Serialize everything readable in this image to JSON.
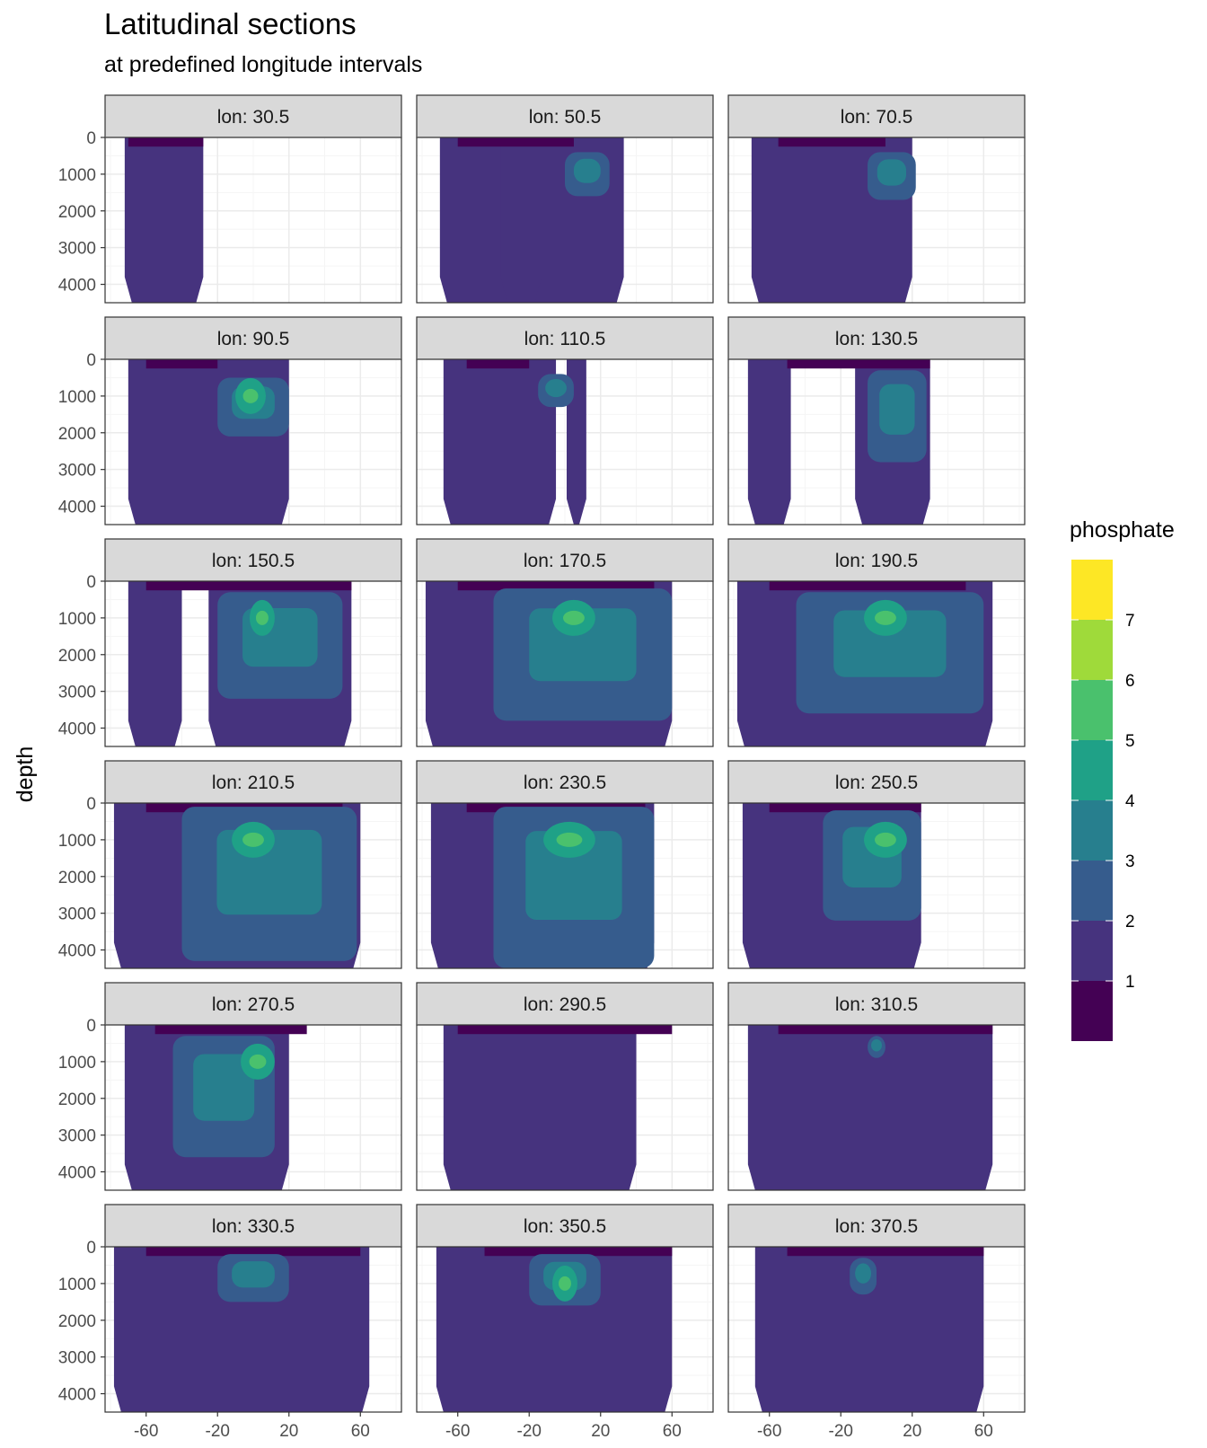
{
  "chart_data": {
    "type": "heatmap",
    "title": "Latitudinal sections",
    "subtitle": "at predefined longitude intervals",
    "xlabel": "",
    "ylabel": "depth",
    "xlim": [
      -83,
      83
    ],
    "ylim": [
      4500,
      0
    ],
    "x_ticks": [
      -60,
      -20,
      20,
      60
    ],
    "x_tick_labels": [
      "-60",
      "-20",
      "20",
      "60"
    ],
    "y_ticks": [
      0,
      1000,
      2000,
      3000,
      4000
    ],
    "y_tick_labels": [
      "0",
      "1000",
      "2000",
      "3000",
      "4000"
    ],
    "grid": true,
    "legend": {
      "title": "phosphate",
      "position": "right",
      "breaks": [
        "1",
        "2",
        "3",
        "4",
        "5",
        "6",
        "7"
      ],
      "colors": [
        "#440154",
        "#46337E",
        "#365C8D",
        "#277F8E",
        "#1FA187",
        "#4AC16D",
        "#9FDA3A",
        "#FDE725"
      ]
    },
    "colors": {
      "strip_fill": "#d9d9d9",
      "panel_border": "#333333",
      "grid_major": "#ebebeb",
      "grid_minor": "#f5f5f5"
    },
    "panels": [
      {
        "label": "lon: 30.5",
        "ocean": [
          [
            -67,
            -30,
            -72,
            -28
          ]
        ],
        "core": [],
        "hot": [],
        "top": [
          [
            -70,
            -28,
            -65,
            -30
          ]
        ]
      },
      {
        "label": "lon: 50.5",
        "ocean": [
          [
            -65,
            33,
            -70,
            20
          ],
          [
            -35,
            -13,
            -36,
            -20
          ]
        ],
        "core": [
          [
            0,
            25,
            400,
            1600
          ]
        ],
        "hot": [],
        "top": [
          [
            -50,
            5,
            -60,
            0
          ]
        ]
      },
      {
        "label": "lon: 70.5",
        "ocean": [
          [
            -70,
            20,
            -68,
            18
          ]
        ],
        "core": [
          [
            -5,
            22,
            400,
            1700
          ]
        ],
        "hot": [],
        "top": [
          [
            -55,
            0,
            -50,
            5
          ]
        ]
      },
      {
        "label": "lon: 90.5",
        "ocean": [
          [
            -65,
            20,
            -70,
            15
          ]
        ],
        "core": [
          [
            -20,
            20,
            500,
            2100
          ]
        ],
        "hot": [
          [
            -8,
            5
          ]
        ],
        "top": [
          [
            -50,
            -20,
            -60,
            -25
          ]
        ]
      },
      {
        "label": "lon: 110.5",
        "ocean": [
          [
            -65,
            -5,
            -68,
            -10
          ],
          [
            2,
            12,
            1,
            11
          ]
        ],
        "core": [
          [
            -15,
            5,
            400,
            1300
          ]
        ],
        "hot": [],
        "top": [
          [
            -50,
            -20,
            -55,
            -25
          ]
        ]
      },
      {
        "label": "lon: 130.5",
        "ocean": [
          [
            -70,
            -50,
            -72,
            -48
          ],
          [
            -10,
            30,
            -12,
            28
          ]
        ],
        "core": [
          [
            -5,
            28,
            300,
            2800
          ]
        ],
        "hot": [],
        "top": [
          [
            -50,
            -40,
            20,
            30
          ]
        ]
      },
      {
        "label": "lon: 150.5",
        "ocean": [
          [
            -68,
            -40,
            -70,
            -42
          ],
          [
            -20,
            55,
            -25,
            50
          ]
        ],
        "core": [
          [
            -20,
            50,
            300,
            3200
          ]
        ],
        "hot": [
          [
            0,
            10
          ]
        ],
        "top": [
          [
            -60,
            50,
            -55,
            55
          ]
        ]
      },
      {
        "label": "lon: 170.5",
        "ocean": [
          [
            -75,
            60,
            -78,
            55
          ]
        ],
        "core": [
          [
            -40,
            60,
            200,
            3800
          ]
        ],
        "hot": [
          [
            -5,
            15
          ]
        ],
        "top": [
          [
            -50,
            40,
            -60,
            50
          ]
        ]
      },
      {
        "label": "lon: 190.5",
        "ocean": [
          [
            -75,
            65,
            -78,
            60
          ]
        ],
        "core": [
          [
            -45,
            60,
            300,
            3600
          ]
        ],
        "hot": [
          [
            -5,
            15
          ]
        ],
        "top": [
          [
            -55,
            45,
            -60,
            50
          ]
        ]
      },
      {
        "label": "lon: 210.5",
        "ocean": [
          [
            -75,
            58,
            -78,
            60
          ]
        ],
        "core": [
          [
            -40,
            58,
            100,
            4300
          ]
        ],
        "hot": [
          [
            -10,
            10
          ]
        ],
        "top": [
          [
            -50,
            45,
            -60,
            50
          ]
        ]
      },
      {
        "label": "lon: 230.5",
        "ocean": [
          [
            -72,
            50,
            -75,
            48
          ]
        ],
        "core": [
          [
            -40,
            50,
            100,
            4500
          ]
        ],
        "hot": [
          [
            -10,
            15
          ]
        ],
        "top": [
          [
            -50,
            40,
            -55,
            45
          ]
        ]
      },
      {
        "label": "lon: 250.5",
        "ocean": [
          [
            -72,
            25,
            -75,
            20
          ]
        ],
        "core": [
          [
            -30,
            25,
            200,
            3200
          ]
        ],
        "hot": [
          [
            -5,
            15
          ]
        ],
        "top": [
          [
            -55,
            20,
            -60,
            25
          ]
        ]
      },
      {
        "label": "lon: 270.5",
        "ocean": [
          [
            -70,
            20,
            -72,
            12
          ]
        ],
        "core": [
          [
            -45,
            12,
            300,
            3600
          ]
        ],
        "hot": [
          [
            -5,
            10
          ]
        ],
        "top": [
          [
            -55,
            25,
            -50,
            30
          ]
        ]
      },
      {
        "label": "lon: 290.5",
        "ocean": [
          [
            -65,
            40,
            -68,
            38
          ]
        ],
        "core": [],
        "hot": [],
        "top": [
          [
            -60,
            60,
            -50,
            40
          ]
        ]
      },
      {
        "label": "lon: 310.5",
        "ocean": [
          [
            -70,
            65,
            -72,
            60
          ]
        ],
        "core": [
          [
            -5,
            5,
            300,
            900
          ]
        ],
        "hot": [],
        "top": [
          [
            -55,
            60,
            -50,
            65
          ]
        ]
      },
      {
        "label": "lon: 330.5",
        "ocean": [
          [
            -75,
            65,
            -78,
            60
          ]
        ],
        "core": [
          [
            -20,
            20,
            200,
            1500
          ]
        ],
        "hot": [],
        "top": [
          [
            -60,
            60,
            -50,
            50
          ]
        ]
      },
      {
        "label": "lon: 350.5",
        "ocean": [
          [
            -70,
            60,
            -72,
            55
          ]
        ],
        "core": [
          [
            -20,
            20,
            200,
            1600
          ]
        ],
        "hot": [
          [
            -5,
            5
          ]
        ],
        "top": [
          [
            -40,
            60,
            -45,
            55
          ]
        ]
      },
      {
        "label": "lon: 370.5",
        "ocean": [
          [
            -65,
            60,
            -68,
            58
          ]
        ],
        "core": [
          [
            -15,
            0,
            300,
            1300
          ]
        ],
        "hot": [],
        "top": [
          [
            -40,
            60,
            -50,
            60
          ]
        ]
      }
    ]
  }
}
